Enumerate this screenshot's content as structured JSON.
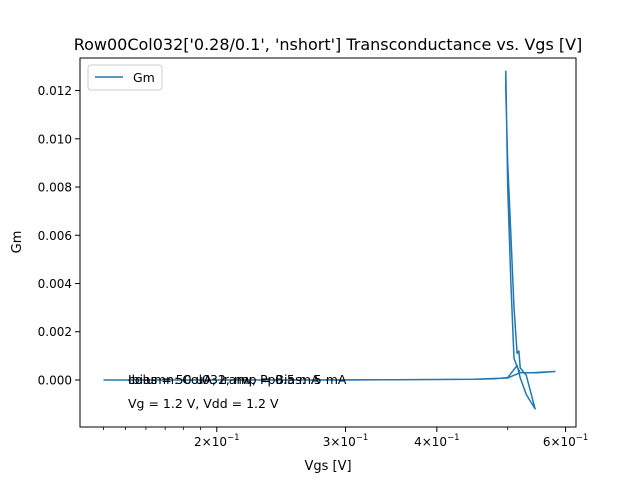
{
  "chart_data": {
    "type": "line",
    "title": "Row00Col032['0.28/0.1', 'nshort'] Transconductance vs. Vgs [V]",
    "xlabel": "Vgs [V]",
    "ylabel": "Gm",
    "x_scale": "log",
    "xlim": [
      0.13,
      0.62
    ],
    "ylim": [
      -0.00195,
      0.01335
    ],
    "grid": false,
    "legend_position": "top-left",
    "series_color": "#1f77b4",
    "x_ticks": [
      {
        "value": 0.2,
        "base": "2×10",
        "exp": "−1"
      },
      {
        "value": 0.3,
        "base": "3×10",
        "exp": "−1"
      },
      {
        "value": 0.4,
        "base": "4×10",
        "exp": "−1"
      },
      {
        "value": 0.6,
        "base": "6×10",
        "exp": "−1"
      }
    ],
    "x_minor_ticks": [
      0.14,
      0.15,
      0.16,
      0.17,
      0.18,
      0.19,
      0.5
    ],
    "y_ticks": [
      {
        "value": 0.0,
        "label": "0.000"
      },
      {
        "value": 0.002,
        "label": "0.002"
      },
      {
        "value": 0.004,
        "label": "0.004"
      },
      {
        "value": 0.006,
        "label": "0.006"
      },
      {
        "value": 0.008,
        "label": "0.008"
      },
      {
        "value": 0.01,
        "label": "0.010"
      },
      {
        "value": 0.012,
        "label": "0.012"
      }
    ],
    "series": [
      {
        "name": "Gm",
        "x": [
          0.14,
          0.18,
          0.25,
          0.35,
          0.45,
          0.5,
          0.52,
          0.54,
          0.58,
          0.55,
          0.52,
          0.515,
          0.51,
          0.505,
          0.5,
          0.497,
          0.497,
          0.5,
          0.505,
          0.51,
          0.515,
          0.518,
          0.52,
          0.53,
          0.545,
          0.53,
          0.52,
          0.515,
          0.5,
          0.48,
          0.45,
          0.4,
          0.35,
          0.3,
          0.25,
          0.2,
          0.16,
          0.14
        ],
        "y": [
          0.0,
          0.0,
          0.0,
          1e-05,
          3e-05,
          8e-05,
          0.0003,
          0.0003,
          0.00035,
          0.0003,
          0.0003,
          0.00055,
          0.0009,
          0.004,
          0.008,
          0.0128,
          0.012,
          0.009,
          0.006,
          0.003,
          0.0011,
          0.0012,
          0.0005,
          0.0002,
          -0.0012,
          -0.0006,
          0.0001,
          0.0006,
          0.0001,
          5e-05,
          3e-05,
          2e-05,
          1e-05,
          0.0,
          0.0,
          0.0,
          0.0,
          0.0
        ]
      }
    ],
    "annotations": [
      "Ibias = 50 uA, Iramp = 0.5 mA",
      "column: Col032, nw, PpBias: .5 mA",
      "Vg = 1.2 V, Vdd = 1.2 V"
    ]
  }
}
